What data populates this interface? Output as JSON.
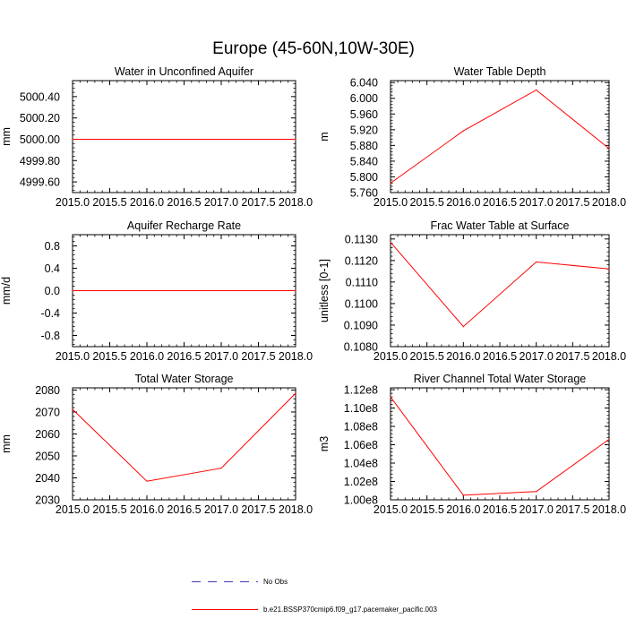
{
  "figure": {
    "title": "Europe (45-60N,10W-30E)",
    "line_color": "#ff0000",
    "obs_color": "#3b3bb8"
  },
  "legend": {
    "obs_label": "No Obs",
    "model_label": "b.e21.BSSP370cmip6.f09_g17.pacemaker_pacific.003"
  },
  "chart_data": [
    {
      "type": "line",
      "title": "Water in Unconfined Aquifer",
      "ylabel": "mm",
      "xlabel": "",
      "xlim": [
        2015,
        2018
      ],
      "ylim": [
        4999.5,
        5000.55
      ],
      "xticks": [
        2015.0,
        2015.5,
        2016.0,
        2016.5,
        2017.0,
        2017.5,
        2018.0
      ],
      "xtick_labels": [
        "2015.0",
        "2015.5",
        "2016.0",
        "2016.5",
        "2017.0",
        "2017.5",
        "2018.0"
      ],
      "yticks": [
        4999.6,
        4999.8,
        5000.0,
        5000.2,
        5000.4
      ],
      "ytick_labels": [
        "4999.60",
        "4999.80",
        "5000.00",
        "5000.20",
        "5000.40"
      ],
      "series": [
        {
          "name": "b.e21.BSSP370cmip6.f09_g17.pacemaker_pacific.003",
          "x": [
            2015,
            2016,
            2017,
            2018
          ],
          "values": [
            5000.0,
            5000.0,
            5000.0,
            5000.0
          ]
        }
      ]
    },
    {
      "type": "line",
      "title": "Water Table Depth",
      "ylabel": "m",
      "xlabel": "",
      "xlim": [
        2015,
        2018
      ],
      "ylim": [
        5.76,
        6.045
      ],
      "xticks": [
        2015.0,
        2015.5,
        2016.0,
        2016.5,
        2017.0,
        2017.5,
        2018.0
      ],
      "xtick_labels": [
        "2015.0",
        "2015.5",
        "2016.0",
        "2016.5",
        "2017.0",
        "2017.5",
        "2018.0"
      ],
      "yticks": [
        5.76,
        5.8,
        5.84,
        5.88,
        5.92,
        5.96,
        6.0,
        6.04
      ],
      "ytick_labels": [
        "5.760",
        "5.800",
        "5.840",
        "5.880",
        "5.920",
        "5.960",
        "6.000",
        "6.040"
      ],
      "series": [
        {
          "name": "b.e21.BSSP370cmip6.f09_g17.pacemaker_pacific.003",
          "x": [
            2015,
            2016,
            2017,
            2018
          ],
          "values": [
            5.784,
            5.917,
            6.021,
            5.872
          ]
        }
      ]
    },
    {
      "type": "line",
      "title": "Aquifer Recharge Rate",
      "ylabel": "mm/d",
      "xlabel": "",
      "xlim": [
        2015,
        2018
      ],
      "ylim": [
        -1.0,
        1.0
      ],
      "xticks": [
        2015.0,
        2015.5,
        2016.0,
        2016.5,
        2017.0,
        2017.5,
        2018.0
      ],
      "xtick_labels": [
        "2015.0",
        "2015.5",
        "2016.0",
        "2016.5",
        "2017.0",
        "2017.5",
        "2018.0"
      ],
      "yticks": [
        -0.8,
        -0.4,
        0.0,
        0.4,
        0.8
      ],
      "ytick_labels": [
        "-0.8",
        "-0.4",
        "0.0",
        "0.4",
        "0.8"
      ],
      "series": [
        {
          "name": "b.e21.BSSP370cmip6.f09_g17.pacemaker_pacific.003",
          "x": [
            2015,
            2016,
            2017,
            2018
          ],
          "values": [
            0.0,
            0.0,
            0.0,
            0.0
          ]
        }
      ]
    },
    {
      "type": "line",
      "title": "Frac Water Table at Surface",
      "ylabel": "unitless [0-1]",
      "xlabel": "",
      "xlim": [
        2015,
        2018
      ],
      "ylim": [
        0.108,
        0.1132
      ],
      "xticks": [
        2015.0,
        2015.5,
        2016.0,
        2016.5,
        2017.0,
        2017.5,
        2018.0
      ],
      "xtick_labels": [
        "2015.0",
        "2015.5",
        "2016.0",
        "2016.5",
        "2017.0",
        "2017.5",
        "2018.0"
      ],
      "yticks": [
        0.108,
        0.109,
        0.11,
        0.111,
        0.112,
        0.113
      ],
      "ytick_labels": [
        "0.1080",
        "0.1090",
        "0.1100",
        "0.1110",
        "0.1120",
        "0.1130"
      ],
      "series": [
        {
          "name": "b.e21.BSSP370cmip6.f09_g17.pacemaker_pacific.003",
          "x": [
            2015,
            2016,
            2017,
            2018
          ],
          "values": [
            0.11285,
            0.10893,
            0.11193,
            0.11161
          ]
        }
      ]
    },
    {
      "type": "line",
      "title": "Total Water Storage",
      "ylabel": "mm",
      "xlabel": "",
      "xlim": [
        2015,
        2018
      ],
      "ylim": [
        2030,
        2081
      ],
      "xticks": [
        2015.0,
        2015.5,
        2016.0,
        2016.5,
        2017.0,
        2017.5,
        2018.0
      ],
      "xtick_labels": [
        "2015.0",
        "2015.5",
        "2016.0",
        "2016.5",
        "2017.0",
        "2017.5",
        "2018.0"
      ],
      "yticks": [
        2030,
        2040,
        2050,
        2060,
        2070,
        2080
      ],
      "ytick_labels": [
        "2030",
        "2040",
        "2050",
        "2060",
        "2070",
        "2080"
      ],
      "series": [
        {
          "name": "b.e21.BSSP370cmip6.f09_g17.pacemaker_pacific.003",
          "x": [
            2015,
            2016,
            2017,
            2018
          ],
          "values": [
            2071.2,
            2038.5,
            2044.4,
            2078.5
          ]
        }
      ]
    },
    {
      "type": "line",
      "title": "River Channel Total Water Storage",
      "ylabel": "m3",
      "xlabel": "",
      "xlim": [
        2015,
        2018
      ],
      "ylim": [
        100000000.0,
        112200000.0
      ],
      "xticks": [
        2015.0,
        2015.5,
        2016.0,
        2016.5,
        2017.0,
        2017.5,
        2018.0
      ],
      "xtick_labels": [
        "2015.0",
        "2015.5",
        "2016.0",
        "2016.5",
        "2017.0",
        "2017.5",
        "2018.0"
      ],
      "yticks": [
        100000000.0,
        102000000.0,
        104000000.0,
        106000000.0,
        108000000.0,
        110000000.0,
        112000000.0
      ],
      "ytick_labels": [
        "1.00e8",
        "1.02e8",
        "1.04e8",
        "1.06e8",
        "1.08e8",
        "1.10e8",
        "1.12e8"
      ],
      "series": [
        {
          "name": "b.e21.BSSP370cmip6.f09_g17.pacemaker_pacific.003",
          "x": [
            2015,
            2016,
            2017,
            2018
          ],
          "values": [
            111200000.0,
            100500000.0,
            100900000.0,
            106600000.0
          ]
        }
      ]
    }
  ]
}
